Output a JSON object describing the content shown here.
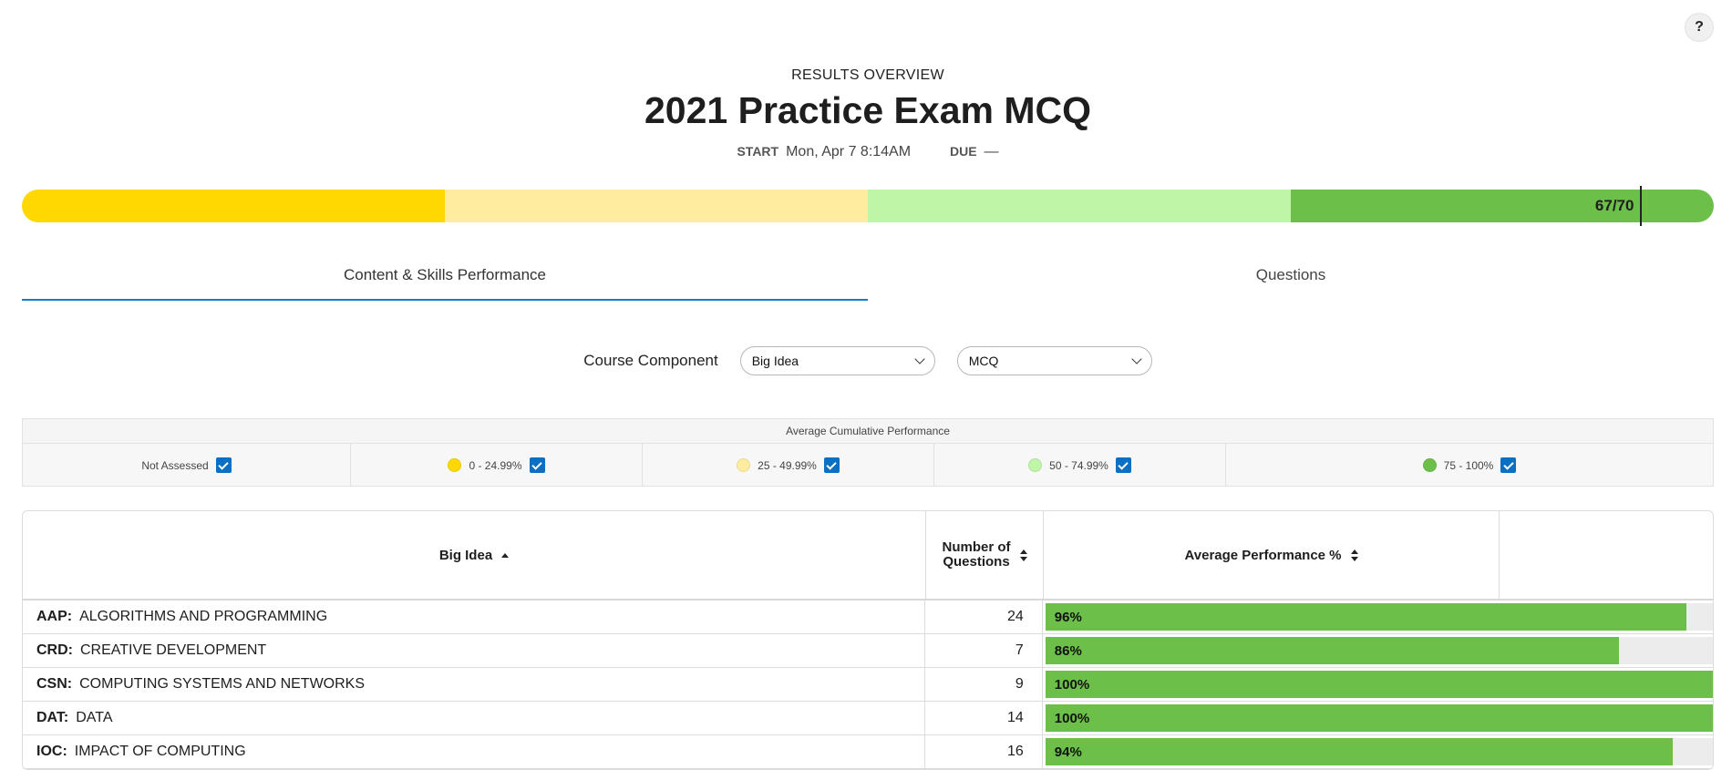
{
  "help": {
    "label": "?"
  },
  "header": {
    "overview_label": "RESULTS OVERVIEW",
    "title": "2021 Practice Exam MCQ",
    "start_label": "START",
    "start_value": "Mon, Apr 7 8:14AM",
    "due_label": "DUE",
    "due_value": "—"
  },
  "score": {
    "text": "67/70",
    "correct": 67,
    "total": 70,
    "bands": [
      {
        "range": "0-25",
        "color": "#fed800"
      },
      {
        "range": "25-50",
        "color": "#ffec9f"
      },
      {
        "range": "50-75",
        "color": "#bff5a6"
      },
      {
        "range": "75-100",
        "color": "#6cc04a"
      }
    ]
  },
  "tabs": [
    {
      "label": "Content & Skills Performance",
      "active": true
    },
    {
      "label": "Questions",
      "active": false
    }
  ],
  "filters": {
    "label": "Course Component",
    "component_select": "Big Idea",
    "type_select": "MCQ"
  },
  "legend": {
    "title": "Average Cumulative Performance",
    "items": [
      {
        "label": "Not Assessed",
        "color": "",
        "checked": true
      },
      {
        "label": "0 - 24.99%",
        "color": "#fed800",
        "checked": true
      },
      {
        "label": "25 - 49.99%",
        "color": "#ffec9f",
        "checked": true
      },
      {
        "label": "50 - 74.99%",
        "color": "#bff5a6",
        "checked": true
      },
      {
        "label": "75 - 100%",
        "color": "#6cc04a",
        "checked": true
      }
    ]
  },
  "table": {
    "columns": {
      "big_idea": "Big Idea",
      "num_questions": "Number of Questions",
      "avg_perf": "Average Performance %",
      "extra": ""
    },
    "rows": [
      {
        "code": "AAP:",
        "name": "ALGORITHMS AND PROGRAMMING",
        "count": "24",
        "percent_text": "96%",
        "percent": 96
      },
      {
        "code": "CRD:",
        "name": "CREATIVE DEVELOPMENT",
        "count": "7",
        "percent_text": "86%",
        "percent": 86
      },
      {
        "code": "CSN:",
        "name": "COMPUTING SYSTEMS AND NETWORKS",
        "count": "9",
        "percent_text": "100%",
        "percent": 100
      },
      {
        "code": "DAT:",
        "name": "DATA",
        "count": "14",
        "percent_text": "100%",
        "percent": 100
      },
      {
        "code": "IOC:",
        "name": "IMPACT OF COMPUTING",
        "count": "16",
        "percent_text": "94%",
        "percent": 94
      }
    ]
  }
}
